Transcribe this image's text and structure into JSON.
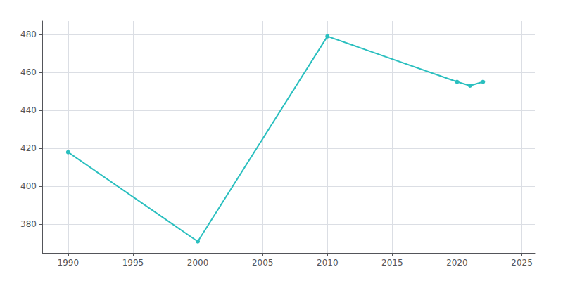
{
  "chart_data": {
    "type": "line",
    "x": [
      1990,
      2000,
      2010,
      2020,
      2021,
      2022
    ],
    "values": [
      418,
      371,
      479,
      455,
      453,
      455
    ],
    "color": "#2ABFBF",
    "marker": "circle",
    "xlim": [
      1988,
      2026
    ],
    "xticks": [
      1990,
      1995,
      2000,
      2005,
      2010,
      2015,
      2020,
      2025
    ],
    "ylim": [
      365,
      487
    ],
    "yticks": [
      380,
      400,
      420,
      440,
      460,
      480
    ],
    "grid": true
  }
}
